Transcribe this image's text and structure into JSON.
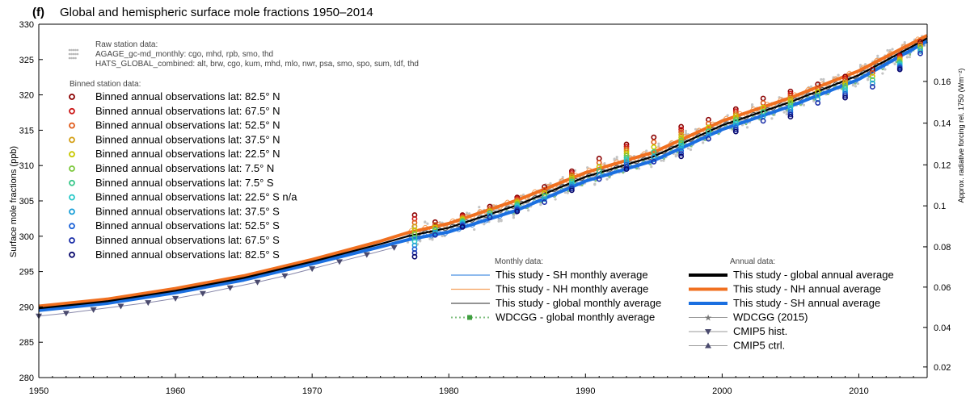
{
  "chart_data": {
    "type": "line",
    "panel_label": "(f)",
    "title": "Global and hemispheric surface mole fractions 1950–2014",
    "xlabel": "",
    "ylabel": "Surface mole fractions (ppb)",
    "ylabel_right": "Approx. radiative forcing rel. 1750 (Wm⁻²)",
    "xlim": [
      1950,
      2015
    ],
    "ylim": [
      280,
      330
    ],
    "x_ticks": [
      1950,
      1960,
      1970,
      1980,
      1990,
      2000,
      2010
    ],
    "y_ticks": [
      280,
      285,
      290,
      295,
      300,
      305,
      310,
      315,
      320,
      325,
      330
    ],
    "right_ticks": [
      {
        "ppb": 281.5,
        "label": "0.02"
      },
      {
        "ppb": 287.1,
        "label": "0.04"
      },
      {
        "ppb": 292.8,
        "label": "0.06"
      },
      {
        "ppb": 298.5,
        "label": "0.08"
      },
      {
        "ppb": 304.3,
        "label": "0.1"
      },
      {
        "ppb": 310.1,
        "label": "0.12"
      },
      {
        "ppb": 316.0,
        "label": "0.14"
      },
      {
        "ppb": 321.9,
        "label": "0.16"
      }
    ],
    "legend_raw": {
      "heading": "Raw station data:",
      "lines": [
        "AGAGE_gc-md_monthly: cgo, mhd, rpb, smo, thd",
        "HATS_GLOBAL_combined: alt, brw, cgo, kum, mhd, mlo, nwr, psa, smo, spo, sum, tdf, thd"
      ]
    },
    "legend_binned": {
      "heading": "Binned station data:",
      "items": [
        {
          "label": "Binned annual observations lat: 82.5° N",
          "color": "#8b0000"
        },
        {
          "label": "Binned annual observations lat: 67.5° N",
          "color": "#cc1a1a"
        },
        {
          "label": "Binned annual observations lat: 52.5° N",
          "color": "#e05a1a"
        },
        {
          "label": "Binned annual observations lat: 37.5° N",
          "color": "#d4a017"
        },
        {
          "label": "Binned annual observations lat: 22.5° N",
          "color": "#c8c800"
        },
        {
          "label": "Binned annual observations lat: 7.5° N",
          "color": "#7cc83c"
        },
        {
          "label": "Binned annual observations lat: 7.5° S",
          "color": "#3cc88c"
        },
        {
          "label": "Binned annual observations lat: 22.5° S n/a",
          "color": "#28c8c8"
        },
        {
          "label": "Binned annual observations lat: 37.5° S",
          "color": "#1ea0d8"
        },
        {
          "label": "Binned annual observations lat: 52.5° S",
          "color": "#1e64d8"
        },
        {
          "label": "Binned annual observations lat: 67.5° S",
          "color": "#1a2ea8"
        },
        {
          "label": "Binned annual observations lat: 82.5° S",
          "color": "#0a0a6e"
        }
      ]
    },
    "legend_monthly": {
      "heading": "Monthly data:",
      "items": [
        {
          "label": "This study - SH monthly average",
          "color": "#4a90e2",
          "style": "thin"
        },
        {
          "label": "This study - NH monthly average",
          "color": "#f5a05a",
          "style": "thin"
        },
        {
          "label": "This study - global monthly average",
          "color": "#555555",
          "style": "thin"
        },
        {
          "label": "WDCGG - global monthly average",
          "color": "#7fbf7f",
          "style": "dotted-square"
        }
      ]
    },
    "legend_annual": {
      "heading": "Annual data:",
      "items": [
        {
          "label": "This study - global annual average",
          "color": "#000000",
          "style": "thick"
        },
        {
          "label": "This study - NH annual average",
          "color": "#f07020",
          "style": "thick"
        },
        {
          "label": "This study - SH annual average",
          "color": "#1a6fe0",
          "style": "thick"
        },
        {
          "label": "WDCGG (2015)",
          "color": "#777777",
          "style": "star"
        },
        {
          "label": "CMIP5 hist.",
          "color": "#555577",
          "style": "tri-down"
        },
        {
          "label": "CMIP5 ctrl.",
          "color": "#555577",
          "style": "tri-up"
        }
      ]
    },
    "series": [
      {
        "name": "This study - global annual average",
        "color": "#000000",
        "x": [
          1950,
          1955,
          1960,
          1965,
          1970,
          1975,
          1977,
          1980,
          1985,
          1990,
          1995,
          2000,
          2005,
          2010,
          2015
        ],
        "values": [
          289.8,
          290.8,
          292.3,
          294.1,
          296.4,
          298.9,
          300.0,
          301.2,
          304.4,
          308.4,
          311.3,
          315.7,
          319.0,
          322.8,
          328.0
        ]
      },
      {
        "name": "This study - NH annual average",
        "color": "#f07020",
        "x": [
          1950,
          1955,
          1960,
          1965,
          1970,
          1975,
          1977,
          1980,
          1985,
          1990,
          1995,
          2000,
          2005,
          2010,
          2015
        ],
        "values": [
          290.1,
          291.1,
          292.6,
          294.4,
          296.7,
          299.3,
          300.5,
          301.8,
          305.1,
          309.0,
          311.9,
          316.3,
          319.6,
          323.4,
          328.4
        ]
      },
      {
        "name": "This study - SH annual average",
        "color": "#1a6fe0",
        "x": [
          1950,
          1955,
          1960,
          1965,
          1970,
          1975,
          1977,
          1980,
          1985,
          1990,
          1995,
          2000,
          2005,
          2010,
          2015
        ],
        "values": [
          289.5,
          290.5,
          292.0,
          293.8,
          296.1,
          298.5,
          299.5,
          300.6,
          303.7,
          307.8,
          310.7,
          315.1,
          318.4,
          322.2,
          327.6
        ]
      },
      {
        "name": "CMIP5 hist.",
        "color": "#555577",
        "x": [
          1950,
          1952,
          1954,
          1956,
          1958,
          1960,
          1962,
          1964,
          1966,
          1968,
          1970,
          1972,
          1974,
          1976
        ],
        "values": [
          288.7,
          289.1,
          289.6,
          290.1,
          290.6,
          291.2,
          291.9,
          292.7,
          293.5,
          294.4,
          295.4,
          296.4,
          297.4,
          298.4
        ]
      }
    ],
    "binned_observations": {
      "x": [
        1977.5,
        1979,
        1981,
        1983,
        1985,
        1987,
        1989,
        1991,
        1993,
        1995,
        1997,
        1999,
        2001,
        2003,
        2005,
        2007,
        2009,
        2011,
        2013,
        2014.5
      ],
      "north_values": [
        303.0,
        302.0,
        303.0,
        304.2,
        305.5,
        307.0,
        309.2,
        311.0,
        313.0,
        314.0,
        315.5,
        316.5,
        318.0,
        319.5,
        320.5,
        321.5,
        322.6,
        323.6,
        325.6,
        327.5
      ],
      "south_values": [
        297.1,
        300.0,
        301.3,
        302.5,
        303.5,
        304.6,
        306.5,
        307.8,
        309.5,
        310.2,
        311.3,
        313.5,
        314.8,
        316.0,
        316.9,
        318.6,
        319.6,
        320.9,
        323.6,
        325.7
      ]
    }
  }
}
